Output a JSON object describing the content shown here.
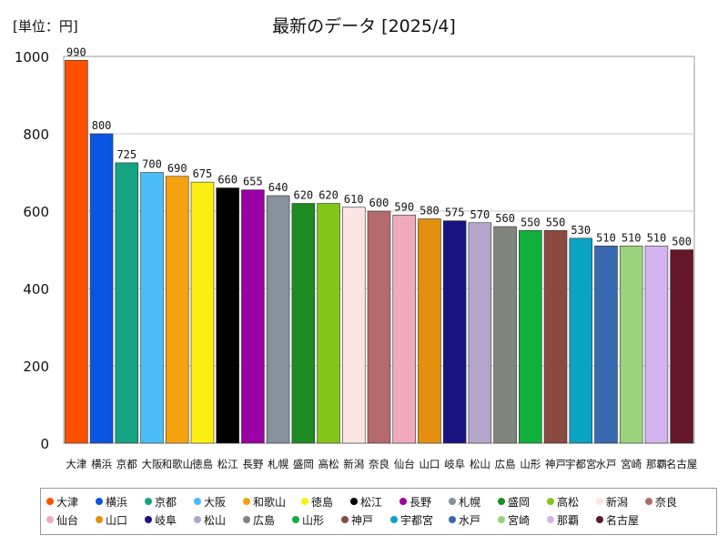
{
  "unit_label": "[単位：円]",
  "chart_data": {
    "type": "bar",
    "title": "最新のデータ [2025/4]",
    "xlabel": "",
    "ylabel": "",
    "ylim": [
      0,
      1000
    ],
    "yticks": [
      0,
      200,
      400,
      600,
      800,
      1000
    ],
    "grid": true,
    "legend_position": "bottom",
    "categories": [
      "大津",
      "横浜",
      "京都",
      "大阪",
      "和歌山",
      "徳島",
      "松江",
      "長野",
      "札幌",
      "盛岡",
      "高松",
      "新潟",
      "奈良",
      "仙台",
      "山口",
      "岐阜",
      "松山",
      "広島",
      "山形",
      "神戸",
      "宇都宮",
      "水戸",
      "宮崎",
      "那覇",
      "名古屋"
    ],
    "values": [
      990,
      800,
      725,
      700,
      690,
      675,
      660,
      655,
      640,
      620,
      620,
      610,
      600,
      590,
      580,
      575,
      570,
      560,
      550,
      550,
      530,
      510,
      510,
      510,
      500
    ],
    "colors": [
      "#ff5000",
      "#0b55e0",
      "#16a383",
      "#4dbdf7",
      "#f5a20f",
      "#fbef12",
      "#000000",
      "#9b00a4",
      "#86919e",
      "#1e8b22",
      "#84c51a",
      "#fbe4e4",
      "#b56a6c",
      "#efaabc",
      "#e48f0e",
      "#1b1281",
      "#b5a4cb",
      "#7f857c",
      "#10b03a",
      "#8a4a40",
      "#0aa3c1",
      "#3a68b0",
      "#9bd27d",
      "#d4b3ef",
      "#651628"
    ]
  }
}
